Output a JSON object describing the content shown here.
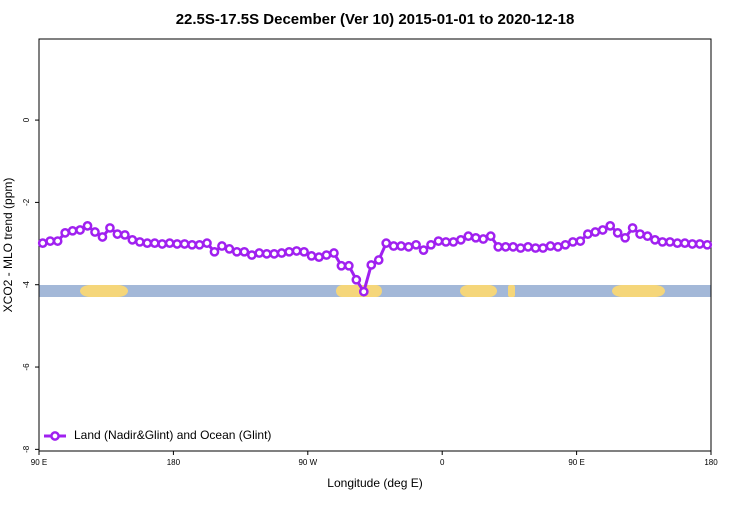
{
  "chart_data": {
    "type": "line",
    "title": "22.5S-17.5S December (Ver 10)   2015-01-01 to 2020-12-18",
    "x_label": "Longitude (deg E)",
    "y_label": "XCO2 - MLO trend (ppm)",
    "x": [
      92.5,
      97.5,
      102.5,
      107.5,
      112.5,
      117.5,
      122.5,
      127.5,
      132.5,
      137.5,
      142.5,
      147.5,
      152.5,
      157.5,
      162.5,
      167.5,
      172.5,
      177.5,
      182.5,
      187.5,
      192.5,
      197.5,
      202.5,
      207.5,
      212.5,
      217.5,
      222.5,
      227.5,
      232.5,
      237.5,
      242.5,
      247.5,
      252.5,
      257.5,
      262.5,
      267.5,
      272.5,
      277.5,
      282.5,
      287.5,
      292.5,
      297.5,
      302.5,
      307.5,
      312.5,
      317.5,
      322.5,
      327.5,
      332.5,
      337.5,
      342.5,
      347.5,
      352.5,
      357.5,
      362.5,
      367.5,
      372.5,
      377.5,
      382.5,
      387.5,
      392.5,
      397.5,
      402.5,
      407.5,
      412.5,
      417.5,
      422.5,
      427.5,
      432.5,
      437.5,
      442.5,
      447.5,
      452.5,
      457.5,
      462.5,
      467.5,
      472.5,
      477.5,
      482.5,
      487.5,
      492.5,
      497.5,
      502.5,
      507.5,
      512.5,
      517.5,
      522.5,
      527.5,
      532.5,
      537.5
    ],
    "series": [
      {
        "name": "Land (Nadir&Glint) and Ocean (Glint)",
        "color": "#a020f0",
        "values": [
          -2.99,
          -2.94,
          -2.94,
          -2.74,
          -2.69,
          -2.67,
          -2.57,
          -2.72,
          -2.84,
          -2.62,
          -2.77,
          -2.79,
          -2.91,
          -2.96,
          -2.99,
          -2.99,
          -3.01,
          -2.99,
          -3.01,
          -3.01,
          -3.03,
          -3.03,
          -2.99,
          -3.2,
          -3.06,
          -3.13,
          -3.2,
          -3.2,
          -3.28,
          -3.23,
          -3.25,
          -3.25,
          -3.23,
          -3.2,
          -3.18,
          -3.2,
          -3.3,
          -3.33,
          -3.28,
          -3.23,
          -3.54,
          -3.54,
          -3.88,
          -4.17,
          -3.52,
          -3.4,
          -2.99,
          -3.06,
          -3.06,
          -3.08,
          -3.03,
          -3.16,
          -3.03,
          -2.94,
          -2.96,
          -2.96,
          -2.91,
          -2.82,
          -2.86,
          -2.89,
          -2.82,
          -3.08,
          -3.08,
          -3.08,
          -3.11,
          -3.08,
          -3.11,
          -3.11,
          -3.06,
          -3.08,
          -3.03,
          -2.96,
          -2.94,
          -2.77,
          -2.72,
          -2.67,
          -2.57,
          -2.74,
          -2.86,
          -2.62,
          -2.77,
          -2.82,
          -2.91,
          -2.96,
          -2.96,
          -2.99,
          -2.99,
          -3.01,
          -3.01,
          -3.03
        ]
      }
    ],
    "xlim": [
      90,
      540
    ],
    "xticks": [
      {
        "value": 90,
        "label": "90 E"
      },
      180,
      {
        "value": 270,
        "label": "90 W"
      },
      {
        "value": 360,
        "label": "0"
      },
      {
        "value": 450,
        "label": "90 E"
      },
      {
        "value": 540,
        "label": "180"
      }
    ],
    "ylim": [
      -8.04,
      1.97
    ],
    "yticks": [
      -8,
      -6,
      -4,
      -2,
      0
    ],
    "legend": "bottom-left"
  }
}
